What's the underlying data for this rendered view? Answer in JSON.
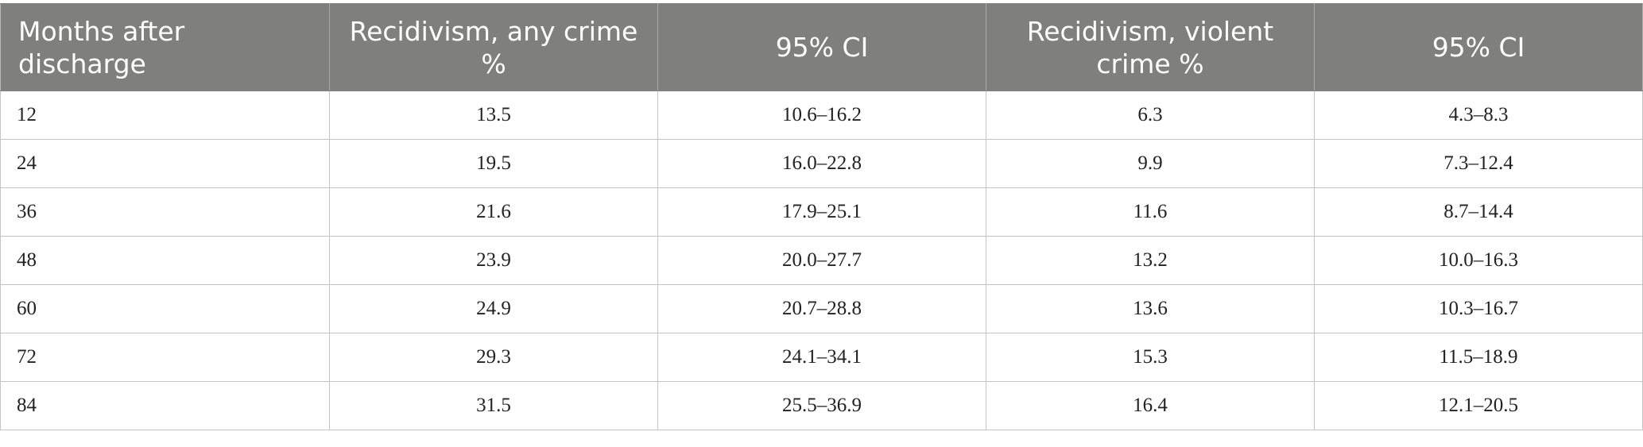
{
  "table": {
    "headers": [
      "Months after discharge",
      "Recidivism, any crime %",
      "95% CI",
      "Recidivism, violent crime %",
      "95% CI"
    ],
    "rows": [
      [
        "12",
        "13.5",
        "10.6–16.2",
        "6.3",
        "4.3–8.3"
      ],
      [
        "24",
        "19.5",
        "16.0–22.8",
        "9.9",
        "7.3–12.4"
      ],
      [
        "36",
        "21.6",
        "17.9–25.1",
        "11.6",
        "8.7–14.4"
      ],
      [
        "48",
        "23.9",
        "20.0–27.7",
        "13.2",
        "10.0–16.3"
      ],
      [
        "60",
        "24.9",
        "20.7–28.8",
        "13.6",
        "10.3–16.7"
      ],
      [
        "72",
        "29.3",
        "24.1–34.1",
        "15.3",
        "11.5–18.9"
      ],
      [
        "84",
        "31.5",
        "25.5–36.9",
        "16.4",
        "12.1–20.5"
      ]
    ]
  },
  "colors": {
    "header_background": "#7f807e",
    "header_text": "#ffffff",
    "grid_line": "#c4c4c4",
    "body_text": "#222222"
  }
}
